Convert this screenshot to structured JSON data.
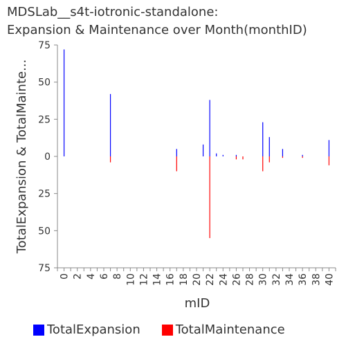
{
  "chart_data": {
    "type": "bar",
    "title_lines": [
      "MDSLab__s4t-iotronic-standalone:",
      "Expansion & Maintenance over Month(monthID)"
    ],
    "xlabel": "mID",
    "ylabel": "TotalExpansion & TotalMainte...",
    "xlim": [
      -1,
      41
    ],
    "x_ticks": [
      0,
      2,
      4,
      6,
      8,
      10,
      12,
      14,
      16,
      18,
      20,
      22,
      24,
      26,
      28,
      30,
      32,
      34,
      36,
      38,
      40
    ],
    "ylim": [
      -75,
      75
    ],
    "y_ticks": [
      75,
      50,
      25,
      0,
      -25,
      -50,
      -75
    ],
    "y_tick_labels": [
      "75",
      "50",
      "25",
      "0",
      "25",
      "50",
      "75"
    ],
    "legend_position": "bottom",
    "grid": false,
    "series": [
      {
        "name": "TotalExpansion",
        "color": "#0000ff",
        "x": [
          0,
          7,
          17,
          21,
          22,
          23,
          24,
          26,
          30,
          31,
          33,
          36,
          40
        ],
        "values": [
          72,
          42,
          5,
          8,
          38,
          2,
          1,
          1,
          23,
          13,
          5,
          1,
          11
        ]
      },
      {
        "name": "TotalMaintenance",
        "color": "#ff0000",
        "x": [
          7,
          17,
          22,
          26,
          27,
          30,
          31,
          33,
          36,
          40
        ],
        "values": [
          -4,
          -10,
          -55,
          -2,
          -2,
          -10,
          -4,
          -1,
          -1,
          -6
        ]
      }
    ]
  }
}
